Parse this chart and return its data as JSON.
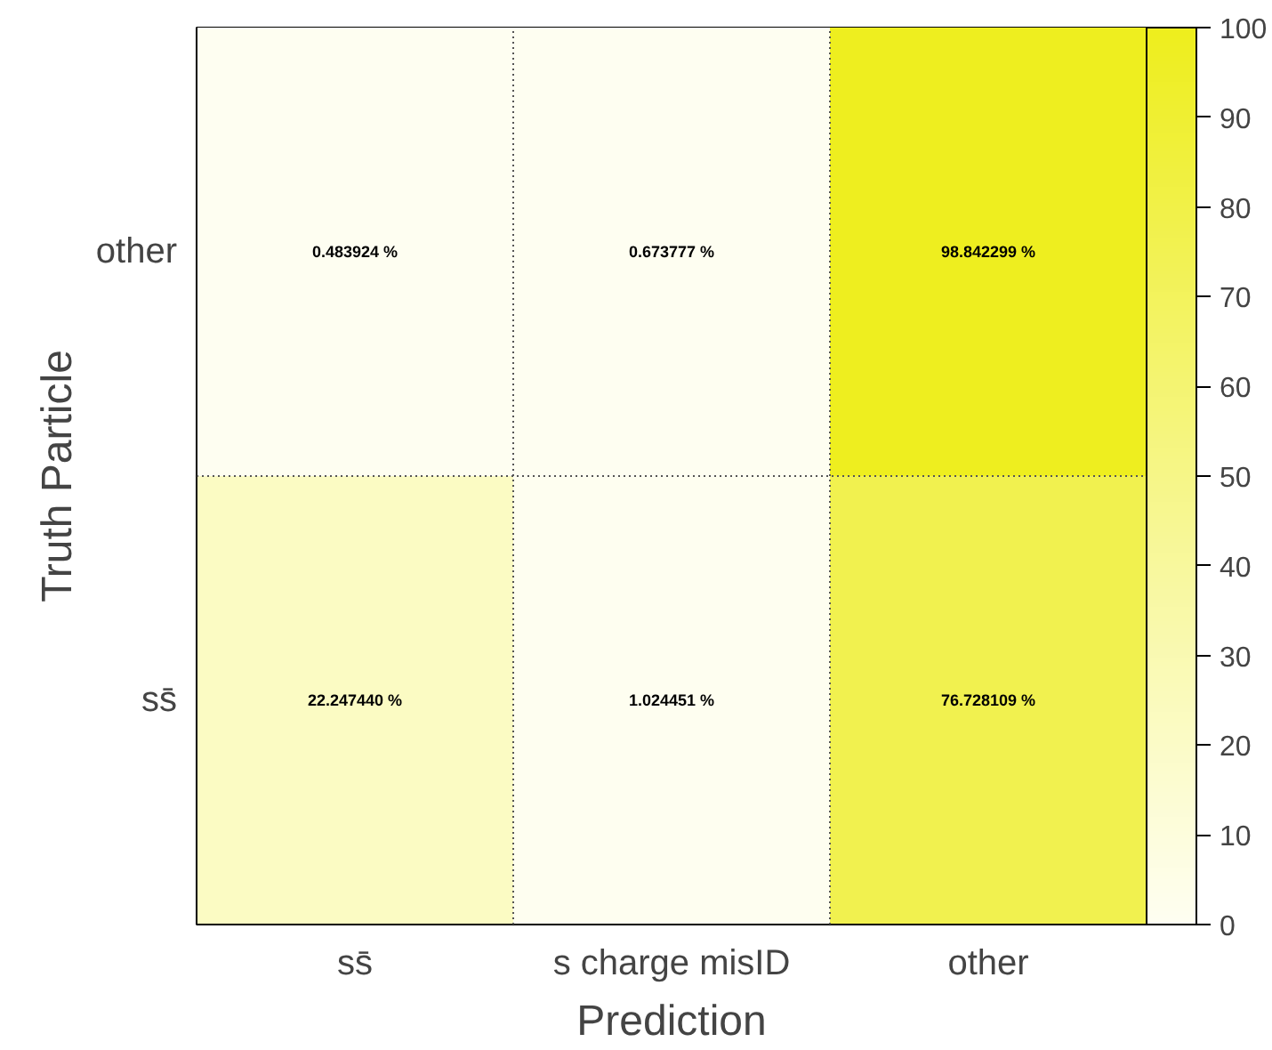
{
  "chart_data": {
    "type": "heatmap",
    "xlabel": "Prediction",
    "ylabel": "Truth Particle",
    "categories": [
      "ss̄",
      "s charge misID",
      "other"
    ],
    "y_categories": [
      "other",
      "ss̄"
    ],
    "cells": [
      [
        0.483924,
        0.673777,
        98.842299
      ],
      [
        22.24744,
        1.024451,
        76.728109
      ]
    ],
    "cell_labels": [
      [
        "0.483924 %",
        "0.673777 %",
        "98.842299 %"
      ],
      [
        "22.247440 %",
        "1.024451 %",
        "76.728109 %"
      ]
    ],
    "clim": [
      0,
      100
    ],
    "cticks": [
      0,
      10,
      20,
      30,
      40,
      50,
      60,
      70,
      80,
      90,
      100
    ],
    "grid": true
  }
}
